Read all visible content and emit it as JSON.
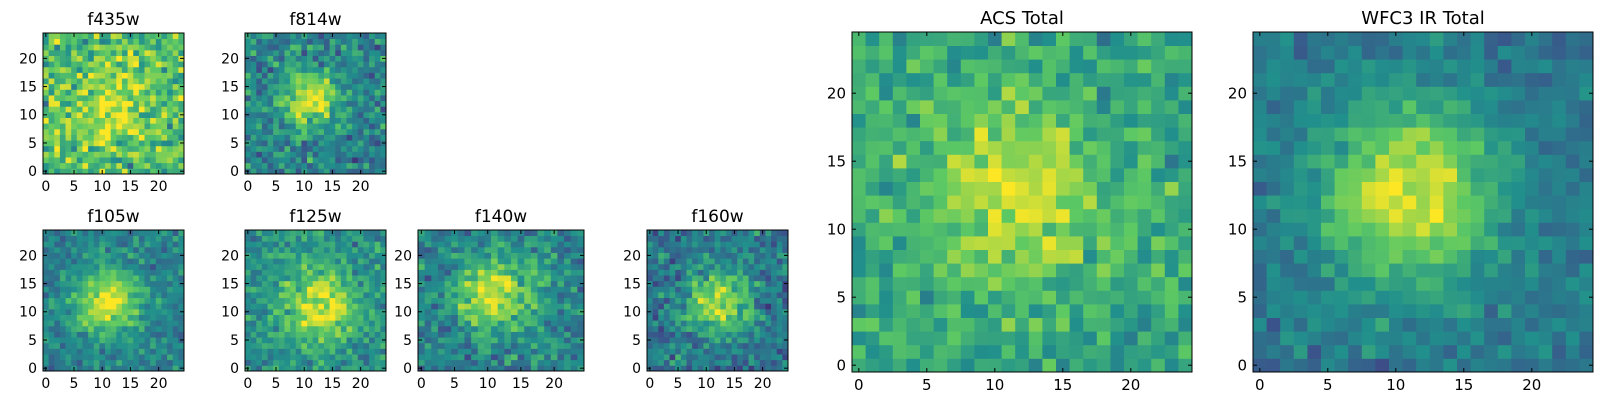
{
  "figure": {
    "colormap": "viridis",
    "colormap_stops": [
      "#440154",
      "#3b528b",
      "#21908c",
      "#5dc963",
      "#fde725"
    ]
  },
  "chart_data": [
    {
      "type": "heatmap",
      "title": "f435w",
      "grid_size": 25,
      "xlim": [
        -0.5,
        24.5
      ],
      "ylim": [
        -0.5,
        24.5
      ],
      "xticks": [
        0,
        5,
        10,
        15,
        20
      ],
      "yticks": [
        0,
        5,
        10,
        15,
        20
      ],
      "center": [
        12,
        12
      ],
      "peak": 0.25,
      "sigma": 5.0,
      "background": 0.68,
      "noise": 0.28,
      "seed": 11
    },
    {
      "type": "heatmap",
      "title": "f814w",
      "grid_size": 25,
      "xlim": [
        -0.5,
        24.5
      ],
      "ylim": [
        -0.5,
        24.5
      ],
      "xticks": [
        0,
        5,
        10,
        15,
        20
      ],
      "yticks": [
        0,
        5,
        10,
        15,
        20
      ],
      "center": [
        11,
        13
      ],
      "peak": 0.5,
      "sigma": 3.5,
      "background": 0.45,
      "noise": 0.22,
      "seed": 23
    },
    {
      "type": "heatmap",
      "title": "f105w",
      "grid_size": 25,
      "xlim": [
        -0.5,
        24.5
      ],
      "ylim": [
        -0.5,
        24.5
      ],
      "xticks": [
        0,
        5,
        10,
        15,
        20
      ],
      "yticks": [
        0,
        5,
        10,
        15,
        20
      ],
      "center": [
        11,
        12
      ],
      "peak": 0.52,
      "sigma": 4.0,
      "background": 0.44,
      "noise": 0.16,
      "seed": 37
    },
    {
      "type": "heatmap",
      "title": "f125w",
      "grid_size": 25,
      "xlim": [
        -0.5,
        24.5
      ],
      "ylim": [
        -0.5,
        24.5
      ],
      "xticks": [
        0,
        5,
        10,
        15,
        20
      ],
      "yticks": [
        0,
        5,
        10,
        15,
        20
      ],
      "center": [
        13,
        11
      ],
      "peak": 0.45,
      "sigma": 4.5,
      "background": 0.5,
      "noise": 0.18,
      "seed": 41
    },
    {
      "type": "heatmap",
      "title": "f140w",
      "grid_size": 25,
      "xlim": [
        -0.5,
        24.5
      ],
      "ylim": [
        -0.5,
        24.5
      ],
      "xticks": [
        0,
        5,
        10,
        15,
        20
      ],
      "yticks": [
        0,
        5,
        10,
        15,
        20
      ],
      "center": [
        11,
        13
      ],
      "peak": 0.5,
      "sigma": 4.2,
      "background": 0.45,
      "noise": 0.2,
      "seed": 53
    },
    {
      "type": "heatmap",
      "title": "f160w",
      "grid_size": 25,
      "xlim": [
        -0.5,
        24.5
      ],
      "ylim": [
        -0.5,
        24.5
      ],
      "xticks": [
        0,
        5,
        10,
        15,
        20
      ],
      "yticks": [
        0,
        5,
        10,
        15,
        20
      ],
      "center": [
        12,
        12
      ],
      "peak": 0.5,
      "sigma": 4.0,
      "background": 0.4,
      "noise": 0.2,
      "seed": 67
    },
    {
      "type": "heatmap",
      "title": "ACS Total",
      "grid_size": 25,
      "xlim": [
        -0.5,
        24.5
      ],
      "ylim": [
        -0.5,
        24.5
      ],
      "xticks": [
        0,
        5,
        10,
        15,
        20
      ],
      "yticks": [
        0,
        5,
        10,
        15,
        20
      ],
      "center": [
        11.5,
        12.5
      ],
      "peak": 0.32,
      "sigma": 4.5,
      "background": 0.6,
      "noise": 0.18,
      "seed": 79
    },
    {
      "type": "heatmap",
      "title": "WFC3 IR Total",
      "grid_size": 25,
      "xlim": [
        -0.5,
        24.5
      ],
      "ylim": [
        -0.5,
        24.5
      ],
      "xticks": [
        0,
        5,
        10,
        15,
        20
      ],
      "yticks": [
        0,
        5,
        10,
        15,
        20
      ],
      "center": [
        11,
        12.5
      ],
      "peak": 0.55,
      "sigma": 4.5,
      "background": 0.4,
      "noise": 0.12,
      "seed": 97
    }
  ]
}
